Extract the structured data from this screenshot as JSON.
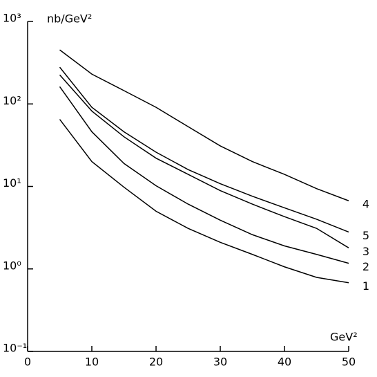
{
  "chart_data": {
    "type": "line",
    "log_y": true,
    "y_label": "nb/GeV²",
    "x_label": "GeV²",
    "x": [
      5,
      10,
      15,
      20,
      25,
      30,
      35,
      40,
      45,
      50
    ],
    "series": [
      {
        "name": "1",
        "color": "#000000",
        "values": [
          65,
          20,
          9.8,
          5.0,
          3.1,
          2.1,
          1.5,
          1.06,
          0.79,
          0.68
        ]
      },
      {
        "name": "2",
        "color": "#000000",
        "values": [
          162,
          46,
          19,
          10.2,
          6.1,
          3.9,
          2.6,
          1.9,
          1.5,
          1.17
        ]
      },
      {
        "name": "3",
        "color": "#000000",
        "values": [
          225,
          82,
          40,
          22,
          14,
          8.9,
          6.1,
          4.3,
          3.1,
          1.8
        ]
      },
      {
        "name": "4",
        "color": "#000000",
        "values": [
          452,
          230,
          145,
          91,
          53,
          31,
          20,
          14,
          9.4,
          6.7
        ]
      },
      {
        "name": "5",
        "color": "#000000",
        "values": [
          279,
          91,
          46,
          26,
          16,
          10.8,
          7.6,
          5.5,
          4.0,
          2.8
        ]
      }
    ],
    "xlim": [
      0,
      50
    ],
    "xticks": [
      0,
      10,
      20,
      30,
      40,
      50
    ],
    "ylim": [
      0.1,
      1000
    ],
    "yticks": [
      {
        "value": 1000,
        "label": "10³"
      },
      {
        "value": 100,
        "label": "10²"
      },
      {
        "value": 10,
        "label": "10¹"
      },
      {
        "value": 1,
        "label": "10⁰"
      },
      {
        "value": 0.1,
        "label": "10⁻¹"
      }
    ]
  }
}
